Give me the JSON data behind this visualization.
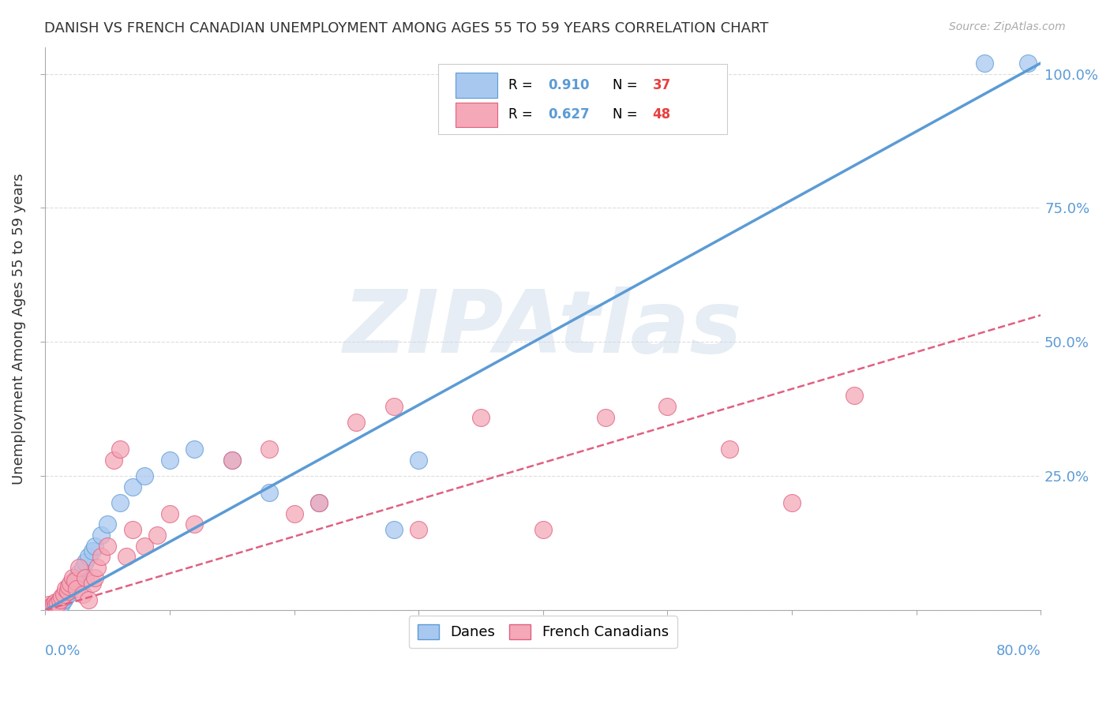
{
  "title": "DANISH VS FRENCH CANADIAN UNEMPLOYMENT AMONG AGES 55 TO 59 YEARS CORRELATION CHART",
  "source": "Source: ZipAtlas.com",
  "ylabel": "Unemployment Among Ages 55 to 59 years",
  "xlim": [
    0,
    0.8
  ],
  "ylim": [
    0,
    1.05
  ],
  "danes_color": "#a8c8f0",
  "danes_edge_color": "#5b9bd5",
  "french_color": "#f4a8b8",
  "french_edge_color": "#e06080",
  "danes_R": 0.91,
  "danes_N": 37,
  "french_R": 0.627,
  "french_N": 48,
  "danes_scatter_x": [
    0.0,
    0.003,
    0.005,
    0.007,
    0.008,
    0.009,
    0.01,
    0.012,
    0.013,
    0.015,
    0.016,
    0.018,
    0.019,
    0.02,
    0.022,
    0.024,
    0.025,
    0.027,
    0.03,
    0.032,
    0.035,
    0.038,
    0.04,
    0.045,
    0.05,
    0.06,
    0.07,
    0.08,
    0.1,
    0.12,
    0.15,
    0.18,
    0.22,
    0.28,
    0.3,
    0.755,
    0.79
  ],
  "danes_scatter_y": [
    0.005,
    0.003,
    0.008,
    0.005,
    0.01,
    0.006,
    0.015,
    0.01,
    0.012,
    0.02,
    0.025,
    0.03,
    0.035,
    0.04,
    0.05,
    0.055,
    0.06,
    0.07,
    0.08,
    0.09,
    0.1,
    0.11,
    0.12,
    0.14,
    0.16,
    0.2,
    0.23,
    0.25,
    0.28,
    0.3,
    0.28,
    0.22,
    0.2,
    0.15,
    0.28,
    1.02,
    1.02
  ],
  "french_scatter_x": [
    0.0,
    0.003,
    0.005,
    0.007,
    0.008,
    0.009,
    0.01,
    0.012,
    0.013,
    0.015,
    0.016,
    0.018,
    0.019,
    0.02,
    0.022,
    0.024,
    0.025,
    0.027,
    0.03,
    0.032,
    0.035,
    0.038,
    0.04,
    0.042,
    0.045,
    0.05,
    0.055,
    0.06,
    0.065,
    0.07,
    0.08,
    0.09,
    0.1,
    0.12,
    0.15,
    0.18,
    0.2,
    0.22,
    0.25,
    0.28,
    0.3,
    0.35,
    0.4,
    0.45,
    0.5,
    0.55,
    0.6,
    0.65
  ],
  "french_scatter_y": [
    0.005,
    0.01,
    0.008,
    0.012,
    0.015,
    0.01,
    0.012,
    0.02,
    0.025,
    0.03,
    0.04,
    0.035,
    0.045,
    0.05,
    0.06,
    0.055,
    0.04,
    0.08,
    0.03,
    0.06,
    0.02,
    0.05,
    0.06,
    0.08,
    0.1,
    0.12,
    0.28,
    0.3,
    0.1,
    0.15,
    0.12,
    0.14,
    0.18,
    0.16,
    0.28,
    0.3,
    0.18,
    0.2,
    0.35,
    0.38,
    0.15,
    0.36,
    0.15,
    0.36,
    0.38,
    0.3,
    0.2,
    0.4
  ],
  "danes_line_x": [
    0.0,
    0.8
  ],
  "danes_line_y": [
    0.0,
    1.02
  ],
  "french_line_x": [
    0.0,
    0.8
  ],
  "french_line_y": [
    0.0,
    0.55
  ],
  "watermark": "ZIPAtlas",
  "background_color": "#ffffff",
  "grid_color": "#dddddd",
  "axis_color": "#aaaaaa",
  "title_color": "#333333",
  "right_axis_color": "#5b9bd5",
  "legend_r_color": "#5b9bd5",
  "legend_n_color": "#e84040"
}
